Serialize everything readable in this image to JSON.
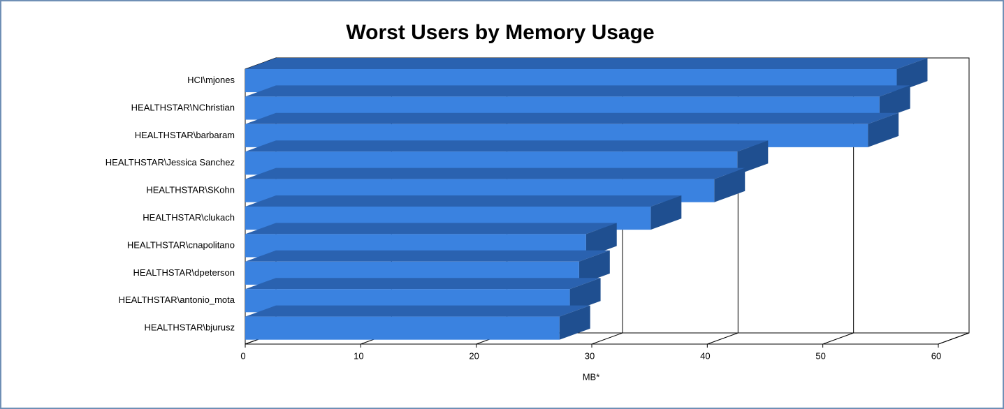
{
  "chart_data": {
    "type": "bar3d-horizontal",
    "title": "Worst Users by Memory Usage",
    "categories": [
      "HCI\\mjones",
      "HEALTHSTAR\\NChristian",
      "HEALTHSTAR\\barbaram",
      "HEALTHSTAR\\Jessica Sanchez",
      "HEALTHSTAR\\SKohn",
      "HEALTHSTAR\\clukach",
      "HEALTHSTAR\\cnapolitano",
      "HEALTHSTAR\\dpeterson",
      "HEALTHSTAR\\antonio_mota",
      "HEALTHSTAR\\bjurusz"
    ],
    "values": [
      56.4,
      54.9,
      53.9,
      42.6,
      40.6,
      35.1,
      29.5,
      28.9,
      28.1,
      27.2
    ],
    "color": "#3a82e0",
    "xlabel": "MB*",
    "xlim": [
      0,
      60
    ],
    "xticks": [
      0,
      10,
      20,
      30,
      40,
      50,
      60
    ],
    "grid": true
  }
}
